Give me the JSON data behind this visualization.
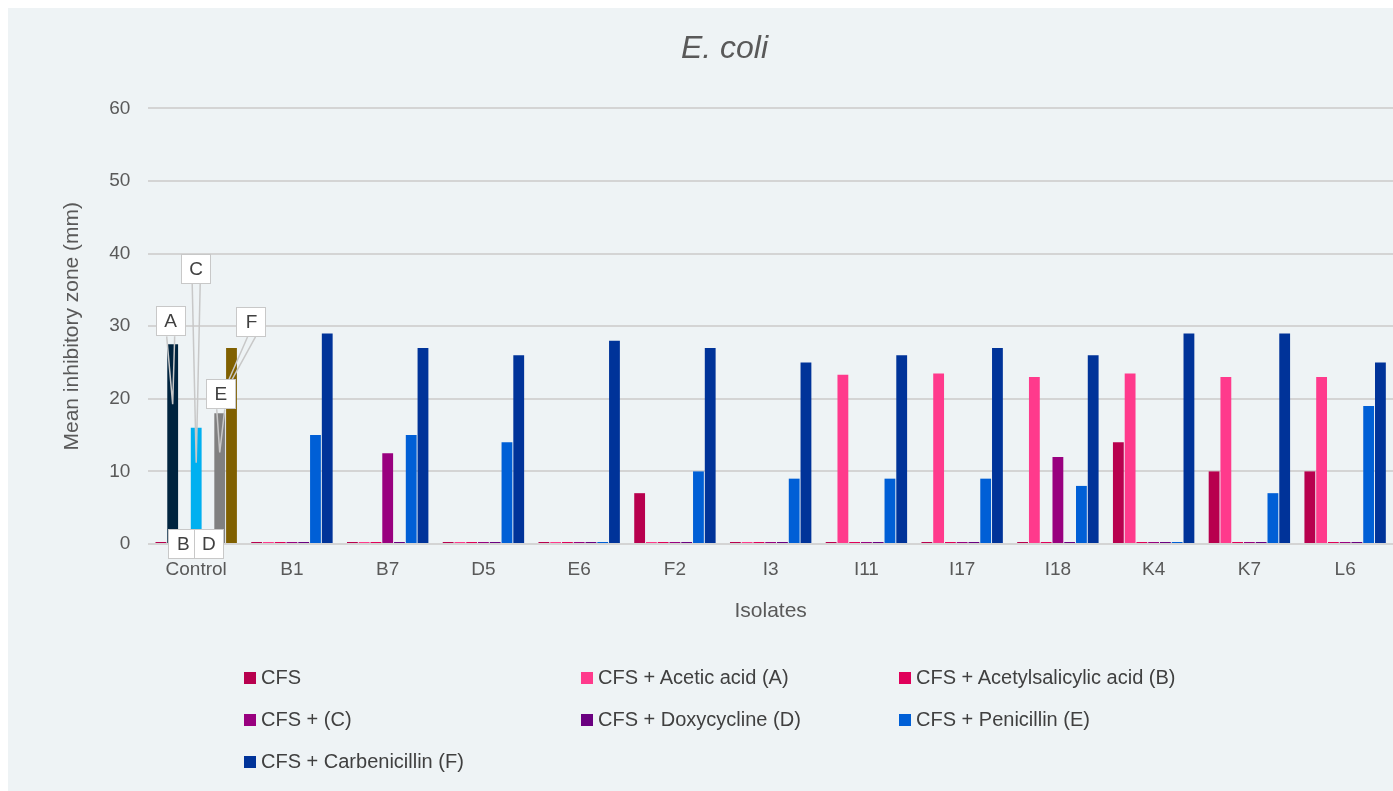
{
  "chart_data": {
    "type": "bar",
    "title": "E. coli",
    "xlabel": "Isolates",
    "ylabel": "Mean inhibitory zone (mm)",
    "categories": [
      "Control",
      "B1",
      "B7",
      "D5",
      "E6",
      "F2",
      "I3",
      "I11",
      "I17",
      "I18",
      "K4",
      "K7",
      "L6"
    ],
    "series": [
      {
        "name": "CFS",
        "color": "#b8004e",
        "values": [
          0,
          0,
          0,
          0,
          0,
          7,
          0,
          0,
          0,
          0,
          14,
          10,
          10
        ]
      },
      {
        "name": "CFS + Acetic acid (A)",
        "color": "#ff3a8c",
        "colors": [
          "#00243f",
          "#ff3a8c",
          "#ff3a8c",
          "#ff3a8c",
          "#ff3a8c",
          "#ff3a8c",
          "#ff3a8c",
          "#ff3a8c",
          "#ff3a8c",
          "#ff3a8c",
          "#ff3a8c",
          "#ff3a8c",
          "#ff3a8c"
        ],
        "values": [
          27.5,
          0,
          0,
          0,
          0,
          0,
          0,
          23.3,
          23.5,
          23,
          23.5,
          23,
          23
        ]
      },
      {
        "name": "CFS + Acetylsalicylic acid (B)",
        "color": "#e0005a",
        "values": [
          0,
          0,
          0,
          0,
          0,
          0,
          0,
          0,
          0,
          0,
          0,
          0,
          0
        ]
      },
      {
        "name": "CFS + (C)",
        "color": "#99007f",
        "colors": [
          "#00b0f0",
          "#99007f",
          "#99007f",
          "#99007f",
          "#99007f",
          "#99007f",
          "#99007f",
          "#99007f",
          "#99007f",
          "#99007f",
          "#99007f",
          "#99007f",
          "#99007f"
        ],
        "values": [
          16,
          0,
          12.5,
          0,
          0,
          0,
          0,
          0,
          0,
          12,
          0,
          0,
          0
        ]
      },
      {
        "name": "CFS + Doxycycline (D)",
        "color": "#6a0080",
        "values": [
          0,
          0,
          0,
          0,
          0,
          0,
          0,
          0,
          0,
          0,
          0,
          0,
          0
        ]
      },
      {
        "name": "CFS + Penicillin (E)",
        "color": "#005fd6",
        "colors": [
          "#808080",
          "#005fd6",
          "#005fd6",
          "#005fd6",
          "#005fd6",
          "#005fd6",
          "#005fd6",
          "#005fd6",
          "#005fd6",
          "#005fd6",
          "#005fd6",
          "#005fd6",
          "#005fd6"
        ],
        "values": [
          18,
          15,
          15,
          14,
          0,
          10,
          9,
          9,
          9,
          8,
          0,
          7,
          19
        ]
      },
      {
        "name": "CFS + Carbenicillin (F)",
        "color": "#003399",
        "colors": [
          "#806000",
          "#003399",
          "#003399",
          "#003399",
          "#003399",
          "#003399",
          "#003399",
          "#003399",
          "#003399",
          "#003399",
          "#003399",
          "#003399",
          "#003399"
        ],
        "values": [
          27,
          29,
          27,
          26,
          28,
          27,
          25,
          26,
          27,
          26,
          29,
          29,
          25
        ]
      }
    ],
    "annotations": [
      "A",
      "B",
      "C",
      "D",
      "E",
      "F"
    ],
    "ylim": [
      0,
      60
    ],
    "yticks": [
      0,
      10,
      20,
      30,
      40,
      50,
      60
    ],
    "grid": "y",
    "legend": "bottom"
  }
}
